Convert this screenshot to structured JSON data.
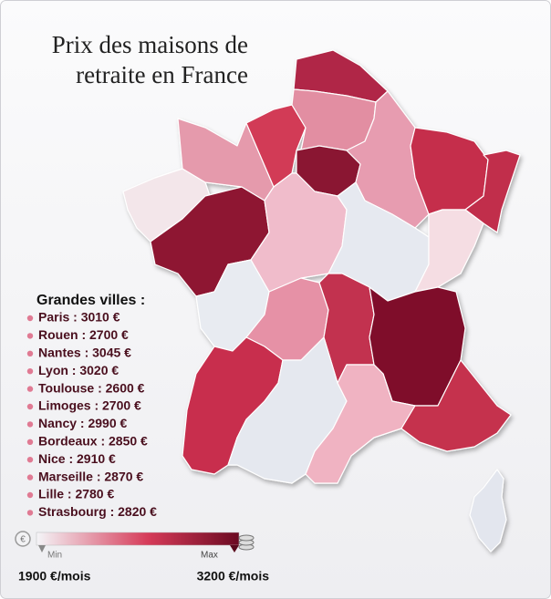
{
  "title": {
    "lines": [
      "Prix des maisons de",
      "retraite en France"
    ]
  },
  "cities": {
    "heading": "Grandes villes :",
    "items": [
      "Paris : 3010 €",
      "Rouen : 2700 €",
      "Nantes : 3045 €",
      "Lyon : 3020 €",
      "Toulouse : 2600 €",
      "Limoges : 2700 €",
      "Nancy : 2990 €",
      "Bordeaux : 2850 €",
      "Nice : 2910 €",
      "Marseille : 2870 €",
      "Lille : 2780 €",
      "Strasbourg : 2820 €"
    ]
  },
  "legend": {
    "min_label": "Min",
    "max_label": "Max",
    "min_value": "1900 €/mois",
    "max_value": "3200 €/mois"
  }
}
